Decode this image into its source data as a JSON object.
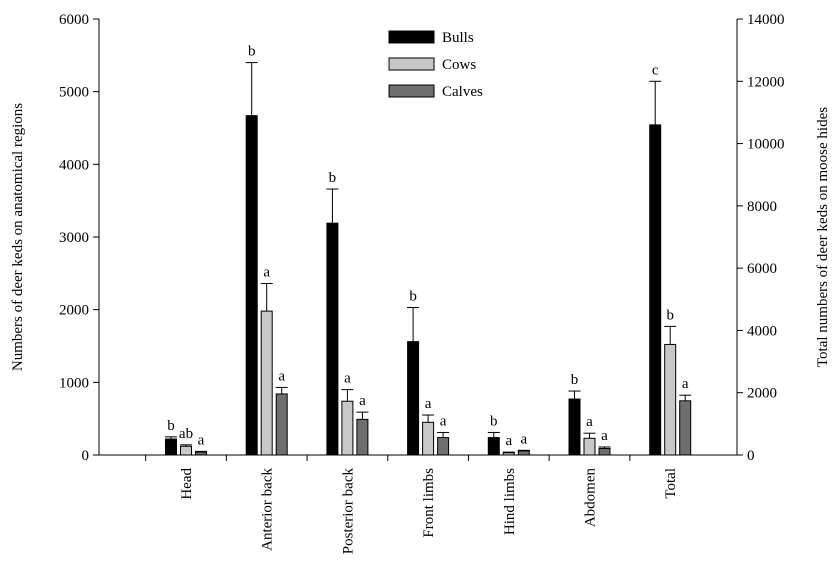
{
  "chart_data": {
    "type": "bar",
    "categories": [
      "Head",
      "Anterior back",
      "Posterior back",
      "Front limbs",
      "Hind limbs",
      "Abdomen",
      "Total"
    ],
    "series": [
      {
        "name": "Bulls",
        "color": "#000000",
        "values": [
          220,
          4670,
          3190,
          1560,
          240,
          770,
          10600
        ],
        "errors": [
          30,
          730,
          470,
          470,
          70,
          110,
          1400
        ],
        "labels": [
          "b",
          "b",
          "b",
          "b",
          "b",
          "b",
          "c"
        ]
      },
      {
        "name": "Cows",
        "color": "#c8c8c8",
        "values": [
          120,
          1980,
          740,
          450,
          30,
          230,
          3550
        ],
        "errors": [
          20,
          380,
          160,
          100,
          10,
          70,
          580
        ],
        "labels": [
          "ab",
          "a",
          "a",
          "a",
          "a",
          "a",
          "b"
        ]
      },
      {
        "name": "Calves",
        "color": "#6e6e6e",
        "values": [
          40,
          840,
          490,
          240,
          55,
          90,
          1740
        ],
        "errors": [
          10,
          90,
          100,
          70,
          10,
          20,
          180
        ],
        "labels": [
          "a",
          "a",
          "a",
          "a",
          "a",
          "a",
          "a"
        ]
      }
    ],
    "left_axis": {
      "label": "Numbers of deer keds on anatomical regions",
      "ylim": [
        0,
        6000
      ],
      "ticks": [
        "0",
        "1000",
        "2000",
        "3000",
        "4000",
        "5000",
        "6000"
      ]
    },
    "right_axis": {
      "label": "Total numbers of deer keds on moose hides",
      "ylim": [
        0,
        14000
      ],
      "ticks": [
        "0",
        "2000",
        "4000",
        "6000",
        "8000",
        "10000",
        "12000",
        "14000"
      ]
    },
    "right_axis_categories": [
      "Total"
    ],
    "legend": {
      "position": "top-center",
      "entries": [
        "Bulls",
        "Cows",
        "Calves"
      ]
    },
    "grid": false
  }
}
